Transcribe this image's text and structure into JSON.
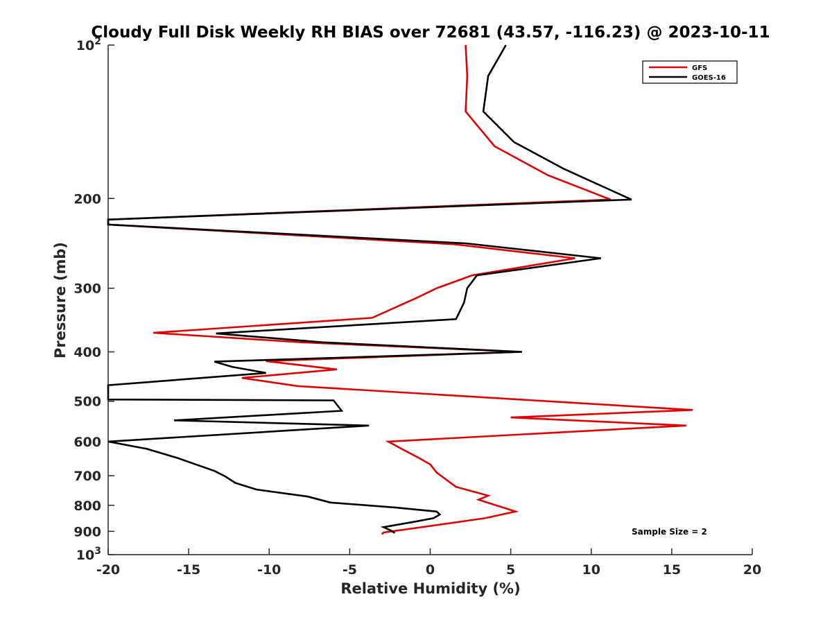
{
  "chart_data": {
    "type": "line",
    "title": "Cloudy Full Disk Weekly RH BIAS over 72681 (43.57, -116.23) @ 2023-10-11",
    "xlabel": "Relative Humidity (%)",
    "ylabel": "Pressure (mb)",
    "xlim": [
      -20,
      20
    ],
    "ylim": [
      100,
      1000
    ],
    "y_scale": "log",
    "y_reversed": true,
    "grid": false,
    "legend_position": "top-right",
    "x_ticks": [
      "-20",
      "-15",
      "-10",
      "-5",
      "0",
      "5",
      "10",
      "15",
      "20"
    ],
    "y_ticks": [
      {
        "value": 100,
        "base": "10",
        "exp": "2"
      },
      {
        "value": 200,
        "label": "200"
      },
      {
        "value": 300,
        "label": "300"
      },
      {
        "value": 400,
        "label": "400"
      },
      {
        "value": 500,
        "label": "500"
      },
      {
        "value": 600,
        "label": "600"
      },
      {
        "value": 700,
        "label": "700"
      },
      {
        "value": 800,
        "label": "800"
      },
      {
        "value": 900,
        "label": "900"
      },
      {
        "value": 1000,
        "base": "10",
        "exp": "3"
      }
    ],
    "annotation": "Sample Size = 2",
    "series": [
      {
        "name": "GFS",
        "color": "#e00000",
        "points": [
          [
            2.2,
            100
          ],
          [
            2.3,
            115
          ],
          [
            2.2,
            135
          ],
          [
            4.0,
            158
          ],
          [
            7.3,
            180
          ],
          [
            11.2,
            201
          ],
          [
            -20.0,
            220
          ],
          [
            -20.0,
            225
          ],
          [
            1.5,
            246
          ],
          [
            9.0,
            262
          ],
          [
            2.6,
            283
          ],
          [
            0.4,
            300
          ],
          [
            -0.8,
            313
          ],
          [
            -3.6,
            343
          ],
          [
            -17.2,
            367
          ],
          [
            -8.0,
            383
          ],
          [
            5.6,
            400
          ],
          [
            -10.2,
            417
          ],
          [
            -5.8,
            433
          ],
          [
            -11.7,
            450
          ],
          [
            -8.2,
            467
          ],
          [
            7.3,
            500
          ],
          [
            16.3,
            520
          ],
          [
            5.0,
            538
          ],
          [
            15.9,
            558
          ],
          [
            -2.6,
            600
          ],
          [
            -1.7,
            622
          ],
          [
            -0.7,
            646
          ],
          [
            0.0,
            665
          ],
          [
            0.4,
            690
          ],
          [
            1.6,
            736
          ],
          [
            3.6,
            766
          ],
          [
            3.0,
            780
          ],
          [
            5.3,
            823
          ],
          [
            3.4,
            848
          ],
          [
            -2.9,
            905
          ],
          [
            -3.0,
            912
          ]
        ]
      },
      {
        "name": "GOES-16",
        "color": "#000000",
        "points": [
          [
            4.7,
            100
          ],
          [
            3.6,
            115
          ],
          [
            3.3,
            135
          ],
          [
            5.2,
            155
          ],
          [
            8.3,
            175
          ],
          [
            12.5,
            201
          ],
          [
            -20.0,
            220
          ],
          [
            -20.0,
            225
          ],
          [
            2.2,
            245
          ],
          [
            10.6,
            262
          ],
          [
            2.9,
            283
          ],
          [
            2.3,
            300
          ],
          [
            2.1,
            320
          ],
          [
            1.6,
            345
          ],
          [
            -13.3,
            368
          ],
          [
            -6.7,
            383
          ],
          [
            5.7,
            400
          ],
          [
            -13.4,
            418
          ],
          [
            -12.3,
            428
          ],
          [
            -10.2,
            440
          ],
          [
            -20.0,
            465
          ],
          [
            -20.0,
            496
          ],
          [
            -6.0,
            498
          ],
          [
            -5.5,
            522
          ],
          [
            -15.9,
            545
          ],
          [
            -3.8,
            558
          ],
          [
            -20.0,
            600
          ],
          [
            -17.6,
            620
          ],
          [
            -15.7,
            646
          ],
          [
            -14.5,
            666
          ],
          [
            -13.4,
            685
          ],
          [
            -12.7,
            703
          ],
          [
            -12.1,
            723
          ],
          [
            -10.8,
            745
          ],
          [
            -7.6,
            769
          ],
          [
            -6.2,
            790
          ],
          [
            -2.2,
            808
          ],
          [
            0.4,
            823
          ],
          [
            0.6,
            834
          ],
          [
            0.2,
            848
          ],
          [
            -0.9,
            861
          ],
          [
            -2.9,
            883
          ],
          [
            -2.4,
            898
          ],
          [
            -2.2,
            907
          ]
        ]
      }
    ]
  }
}
